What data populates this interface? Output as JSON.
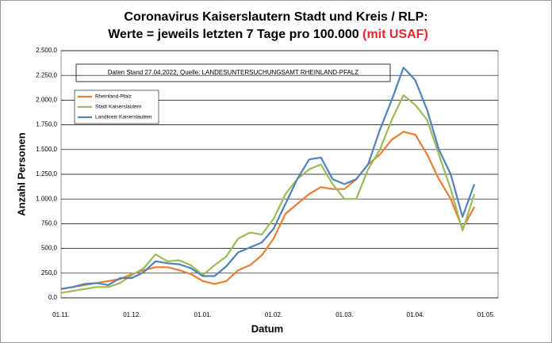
{
  "chart_data": {
    "type": "line",
    "title": "Coronavirus Kaiserslautern Stadt und Kreis / RLP:",
    "subtitle": "Werte = jeweils letzten 7 Tage pro 100.000",
    "subtitle_highlight": "(mit USAF)",
    "annotation": "Daten Stand 27.04.2022, Quelle: LANDESUNTERSUCHUNGSAMT RHEINLAND-PFALZ",
    "x_label": "Datum",
    "y_label": "Anzahl Personen",
    "categories": [
      "01.11.",
      null,
      null,
      null,
      null,
      null,
      "01.12.",
      null,
      null,
      null,
      null,
      null,
      "01.01.",
      null,
      null,
      null,
      null,
      null,
      "01.02.",
      null,
      null,
      null,
      null,
      null,
      "01.03.",
      null,
      null,
      null,
      null,
      null,
      "01.04.",
      null,
      null,
      null,
      null,
      null,
      "01.05."
    ],
    "series": [
      {
        "name": "Rheinland-Pfalz",
        "color": "#ed7d31",
        "values": [
          90,
          110,
          130,
          150,
          170,
          190,
          240,
          280,
          310,
          310,
          280,
          240,
          170,
          140,
          170,
          280,
          330,
          430,
          600,
          850,
          950,
          1050,
          1120,
          1100,
          1100,
          1200,
          1350,
          1450,
          1600,
          1680,
          1650,
          1450,
          1200,
          1000,
          700,
          920,
          null
        ]
      },
      {
        "name": "Stadt Kaiserslautern",
        "color": "#9bbb59",
        "values": [
          50,
          70,
          90,
          110,
          110,
          150,
          230,
          300,
          440,
          370,
          380,
          330,
          230,
          330,
          420,
          600,
          660,
          640,
          800,
          1050,
          1200,
          1300,
          1350,
          1150,
          1000,
          1000,
          1300,
          1500,
          1800,
          2050,
          1950,
          1800,
          1450,
          1100,
          680,
          1050,
          null
        ]
      },
      {
        "name": "Landkreis Kaiserslautern",
        "color": "#4f81bd",
        "values": [
          90,
          110,
          140,
          150,
          130,
          200,
          200,
          260,
          370,
          350,
          340,
          300,
          220,
          220,
          320,
          460,
          510,
          560,
          700,
          950,
          1200,
          1400,
          1420,
          1200,
          1150,
          1200,
          1350,
          1700,
          2000,
          2330,
          2200,
          1900,
          1500,
          1250,
          820,
          1150,
          null
        ]
      }
    ],
    "ylim": [
      0,
      2500
    ],
    "yticks": [
      {
        "value": 0,
        "label": "0,0"
      },
      {
        "value": 250,
        "label": "250,0"
      },
      {
        "value": 500,
        "label": "500,0"
      },
      {
        "value": 750,
        "label": "750,0"
      },
      {
        "value": 1000,
        "label": "1.000,0"
      },
      {
        "value": 1250,
        "label": "1.250,0"
      },
      {
        "value": 1500,
        "label": "1.500,0"
      },
      {
        "value": 1750,
        "label": "1.750,0"
      },
      {
        "value": 2000,
        "label": "2.000,0"
      },
      {
        "value": 2250,
        "label": "2.250,0"
      },
      {
        "value": 2500,
        "label": "2.500,0"
      }
    ],
    "grid": true,
    "legend_position": "upper-left"
  }
}
